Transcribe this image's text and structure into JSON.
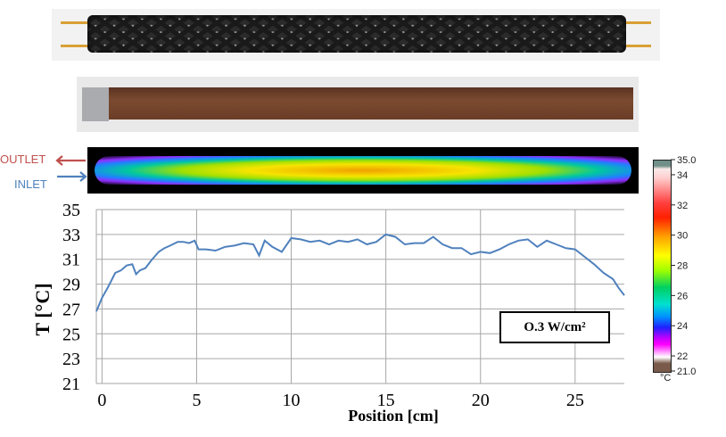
{
  "labels": {
    "outlet": "OUTLET",
    "inlet": "INLET"
  },
  "legend": {
    "text": "O.3 W/cm²"
  },
  "colorscale": {
    "unit": "°C",
    "ticks": [
      "35.0",
      "34",
      "32",
      "30",
      "28",
      "26",
      "24",
      "22",
      "21.0"
    ],
    "tick_values": [
      35.0,
      34,
      32,
      30,
      28,
      26,
      24,
      22,
      21.0
    ],
    "min": 21.0,
    "max": 35.0
  },
  "colors": {
    "series": "#4f81bd",
    "outlet": "#c0504d",
    "inlet": "#4f81bd",
    "grid": "#a6a6a6"
  },
  "chart_data": {
    "type": "line",
    "title": "",
    "xlabel": "Position [cm]",
    "ylabel": "T [°C]",
    "xlim": [
      -0.3,
      27.6
    ],
    "ylim": [
      21,
      35
    ],
    "xticks": [
      0,
      5,
      10,
      15,
      20,
      25
    ],
    "yticks": [
      21,
      23,
      25,
      27,
      29,
      31,
      33,
      35
    ],
    "grid": true,
    "series": [
      {
        "name": "O.3 W/cm²",
        "x": [
          -0.3,
          0.0,
          0.3,
          0.7,
          1.0,
          1.3,
          1.6,
          1.8,
          2.0,
          2.3,
          2.6,
          3.0,
          3.3,
          3.6,
          4.0,
          4.3,
          4.6,
          4.9,
          5.1,
          5.5,
          6.0,
          6.5,
          7.0,
          7.5,
          8.0,
          8.3,
          8.6,
          9.0,
          9.5,
          10.0,
          10.5,
          11.0,
          11.5,
          12.0,
          12.5,
          13.0,
          13.5,
          14.0,
          14.5,
          15.0,
          15.5,
          16.0,
          16.5,
          17.0,
          17.5,
          18.0,
          18.5,
          19.0,
          19.5,
          20.0,
          20.5,
          21.0,
          21.5,
          22.0,
          22.5,
          23.0,
          23.5,
          24.0,
          24.5,
          25.0,
          25.5,
          26.0,
          26.5,
          27.0,
          27.3,
          27.6
        ],
        "values": [
          26.8,
          27.9,
          28.7,
          29.9,
          30.1,
          30.5,
          30.6,
          29.8,
          30.1,
          30.3,
          30.9,
          31.6,
          31.9,
          32.1,
          32.4,
          32.4,
          32.3,
          32.5,
          31.8,
          31.8,
          31.7,
          32.0,
          32.1,
          32.3,
          32.2,
          31.3,
          32.5,
          32.0,
          31.6,
          32.7,
          32.6,
          32.4,
          32.5,
          32.2,
          32.5,
          32.4,
          32.6,
          32.2,
          32.4,
          33.0,
          32.8,
          32.2,
          32.3,
          32.3,
          32.8,
          32.2,
          31.9,
          31.9,
          31.4,
          31.6,
          31.5,
          31.8,
          32.2,
          32.5,
          32.6,
          32.0,
          32.5,
          32.2,
          31.9,
          31.8,
          31.2,
          30.6,
          29.9,
          29.4,
          28.7,
          28.1
        ]
      }
    ]
  }
}
